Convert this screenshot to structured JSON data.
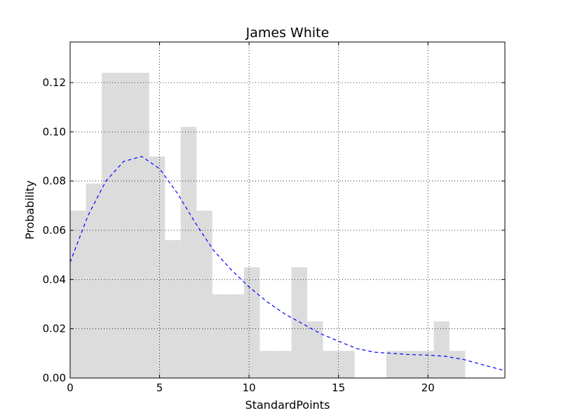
{
  "chart_data": {
    "type": "bar",
    "title": "James White",
    "xlabel": "StandardPoints",
    "ylabel": "Probability",
    "xlim": [
      0,
      24.3
    ],
    "ylim": [
      0,
      0.1365
    ],
    "grid": true,
    "x_ticks": [
      0,
      5,
      10,
      15,
      20
    ],
    "x_tick_labels": [
      "0",
      "5",
      "10",
      "15",
      "20"
    ],
    "y_ticks": [
      0.0,
      0.02,
      0.04,
      0.06,
      0.08,
      0.1,
      0.12
    ],
    "y_tick_labels": [
      "0.00",
      "0.02",
      "0.04",
      "0.06",
      "0.08",
      "0.10",
      "0.12"
    ],
    "bin_edges": [
      0.0,
      0.88,
      1.77,
      2.65,
      3.53,
      4.42,
      5.3,
      6.18,
      7.07,
      7.95,
      8.83,
      9.72,
      10.6,
      11.48,
      12.37,
      13.25,
      14.13,
      15.02,
      15.9,
      16.78,
      17.67,
      18.55,
      19.43,
      20.32,
      21.2,
      22.08
    ],
    "bar_values": [
      0.068,
      0.079,
      0.124,
      0.124,
      0.124,
      0.09,
      0.056,
      0.102,
      0.068,
      0.034,
      0.034,
      0.045,
      0.011,
      0.011,
      0.045,
      0.023,
      0.011,
      0.011,
      0.0,
      0.0,
      0.011,
      0.011,
      0.011,
      0.023,
      0.011
    ],
    "bar_color": "#dcdcdc",
    "series": [
      {
        "type": "line",
        "style": "dashed",
        "color": "#0000ff",
        "x": [
          0,
          1,
          2,
          3,
          4,
          5,
          6,
          7,
          8,
          9,
          10,
          11,
          12,
          13,
          14,
          15,
          16,
          17,
          18,
          19,
          20,
          21,
          22,
          23,
          24.3
        ],
        "y": [
          0.047,
          0.066,
          0.08,
          0.088,
          0.09,
          0.085,
          0.075,
          0.063,
          0.052,
          0.044,
          0.037,
          0.031,
          0.026,
          0.022,
          0.018,
          0.015,
          0.012,
          0.0105,
          0.01,
          0.0095,
          0.0093,
          0.0088,
          0.0075,
          0.0055,
          0.003
        ]
      }
    ]
  }
}
